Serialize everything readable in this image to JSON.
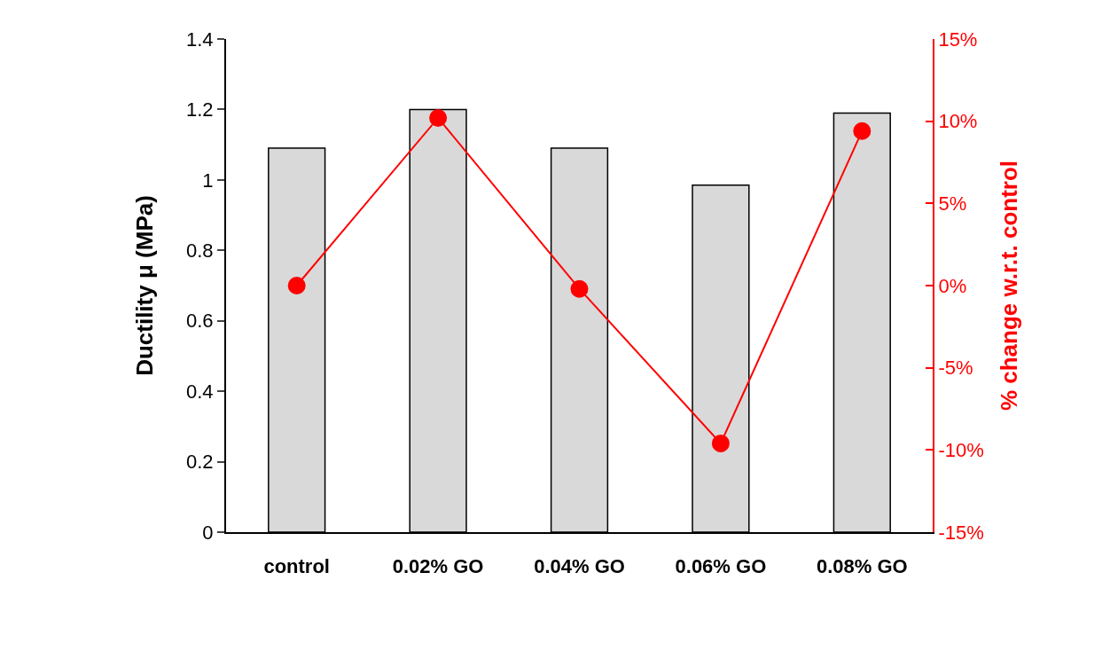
{
  "chart_data": {
    "type": "bar",
    "ylabel": "Ductility μ (MPa)",
    "y2label": "% change w.r.t. control",
    "categories": [
      "control",
      "0.02% GO",
      "0.04% GO",
      "0.06% GO",
      "0.08% GO"
    ],
    "series": [
      {
        "color": "#d9d9d9",
        "values": [
          1.09,
          1.2,
          1.09,
          0.985,
          1.19
        ]
      },
      {
        "type": "line",
        "axis": "y2",
        "color": "#ff0000",
        "marker": "circle",
        "values": [
          0,
          10.2,
          -0.2,
          -9.6,
          9.4
        ]
      }
    ],
    "ylim": [
      0,
      1.4
    ],
    "yticks": [
      0,
      0.2,
      0.4,
      0.6,
      0.8,
      1,
      1.2,
      1.4
    ],
    "y2lim": [
      -15,
      15
    ],
    "y2ticks": [
      {
        "value": -15,
        "label": "-15%"
      },
      {
        "value": -10,
        "label": "-10%"
      },
      {
        "value": -5,
        "label": "-5%"
      },
      {
        "value": 0,
        "label": "0%"
      },
      {
        "value": 5,
        "label": "5%"
      },
      {
        "value": 10,
        "label": "10%"
      },
      {
        "value": 15,
        "label": "15%"
      }
    ],
    "grid": false,
    "legend": false
  }
}
